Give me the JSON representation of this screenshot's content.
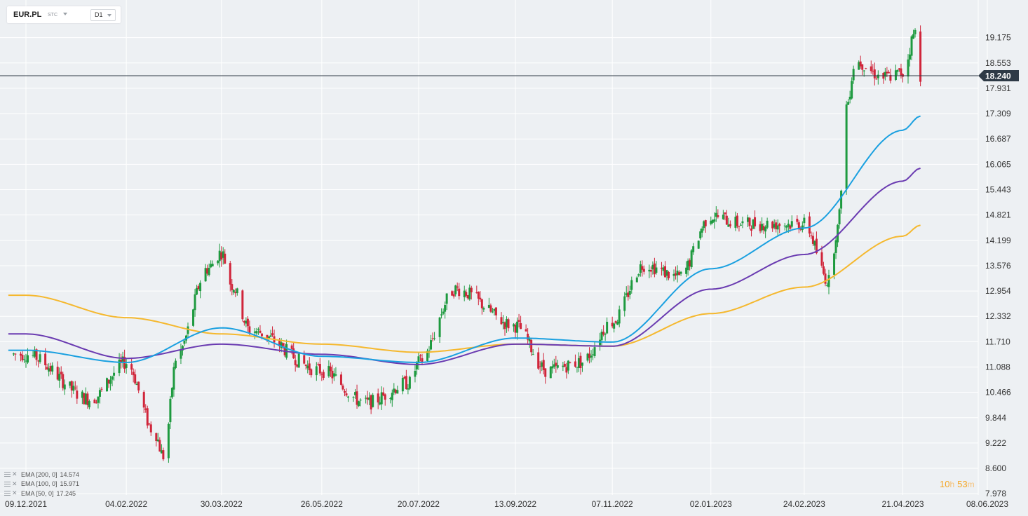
{
  "header": {
    "symbol": "EUR.PL",
    "symbol_sub": "STC",
    "timeframe": "D1"
  },
  "price_marker": "18.240",
  "timer": {
    "hours": "10",
    "hours_unit": "h",
    "minutes": "53",
    "minutes_unit": "m"
  },
  "legend": [
    {
      "name": "EMA [200, 0]",
      "value": "14.574"
    },
    {
      "name": "EMA [100, 0]",
      "value": "15.971"
    },
    {
      "name": "EMA [50, 0]",
      "value": "17.245"
    }
  ],
  "colors": {
    "background": "#edf0f3",
    "grid": "#ffffff",
    "bull": "#1e9a3f",
    "bear": "#d0253a",
    "ema200": "#f5b82e",
    "ema100": "#6a3bb1",
    "ema50": "#1aa0e0",
    "price_line": "#2e3a46",
    "price_tag": "#2e3a46"
  },
  "chart_data": {
    "type": "candlestick",
    "title": "",
    "xlabel": "",
    "ylabel": "",
    "ylim": [
      7.978,
      19.797
    ],
    "grid": true,
    "y_ticks": [
      "19.175",
      "18.553",
      "17.931",
      "17.309",
      "16.687",
      "16.065",
      "15.443",
      "14.821",
      "14.199",
      "13.576",
      "12.954",
      "12.332",
      "11.710",
      "11.088",
      "10.466",
      "9.844",
      "9.222",
      "8.600",
      "7.978"
    ],
    "x_ticks": [
      "09.12.2021",
      "04.02.2022",
      "30.03.2022",
      "26.05.2022",
      "20.07.2022",
      "13.09.2022",
      "07.11.2022",
      "02.01.2023",
      "24.02.2023",
      "21.04.2023",
      "08.06.2023"
    ],
    "last_price": 18.24,
    "ohlc_anchors": [
      {
        "x": "09.12.2021",
        "close": 11.4
      },
      {
        "x": "04.02.2022",
        "close": 11.2
      },
      {
        "x": "30.03.2022",
        "close": 13.9
      },
      {
        "x": "26.05.2022",
        "close": 11.0
      },
      {
        "x": "20.07.2022",
        "close": 11.2
      },
      {
        "x": "13.09.2022",
        "close": 12.1
      },
      {
        "x": "07.11.2022",
        "close": 12.2
      },
      {
        "x": "02.01.2023",
        "close": 14.8
      },
      {
        "x": "24.02.2023",
        "close": 14.6
      },
      {
        "x": "21.04.2023",
        "close": 18.3
      }
    ],
    "low_point": {
      "x": "04.02.2022",
      "value": 8.3
    },
    "high_point": {
      "x": "21.04.2023",
      "value": 19.7
    },
    "series": [
      {
        "name": "EMA [200, 0]",
        "points": [
          {
            "x": "09.12.2021",
            "y": 12.85
          },
          {
            "x": "04.02.2022",
            "y": 12.3
          },
          {
            "x": "30.03.2022",
            "y": 11.9
          },
          {
            "x": "26.05.2022",
            "y": 11.65
          },
          {
            "x": "20.07.2022",
            "y": 11.45
          },
          {
            "x": "13.09.2022",
            "y": 11.65
          },
          {
            "x": "07.11.2022",
            "y": 11.6
          },
          {
            "x": "02.01.2023",
            "y": 12.4
          },
          {
            "x": "24.02.2023",
            "y": 13.05
          },
          {
            "x": "21.04.2023",
            "y": 14.3
          },
          {
            "x": "01.05.2023",
            "y": 14.57
          }
        ]
      },
      {
        "name": "EMA [100, 0]",
        "points": [
          {
            "x": "09.12.2021",
            "y": 11.9
          },
          {
            "x": "04.02.2022",
            "y": 11.3
          },
          {
            "x": "30.03.2022",
            "y": 11.65
          },
          {
            "x": "26.05.2022",
            "y": 11.4
          },
          {
            "x": "20.07.2022",
            "y": 11.15
          },
          {
            "x": "13.09.2022",
            "y": 11.65
          },
          {
            "x": "07.11.2022",
            "y": 11.6
          },
          {
            "x": "02.01.2023",
            "y": 13.0
          },
          {
            "x": "24.02.2023",
            "y": 13.85
          },
          {
            "x": "21.04.2023",
            "y": 15.65
          },
          {
            "x": "01.05.2023",
            "y": 15.97
          }
        ]
      },
      {
        "name": "EMA [50, 0]",
        "points": [
          {
            "x": "09.12.2021",
            "y": 11.5
          },
          {
            "x": "04.02.2022",
            "y": 11.2
          },
          {
            "x": "30.03.2022",
            "y": 12.05
          },
          {
            "x": "26.05.2022",
            "y": 11.35
          },
          {
            "x": "20.07.2022",
            "y": 11.2
          },
          {
            "x": "13.09.2022",
            "y": 11.8
          },
          {
            "x": "07.11.2022",
            "y": 11.7
          },
          {
            "x": "02.01.2023",
            "y": 13.5
          },
          {
            "x": "24.02.2023",
            "y": 14.5
          },
          {
            "x": "21.04.2023",
            "y": 16.9
          },
          {
            "x": "01.05.2023",
            "y": 17.25
          }
        ]
      }
    ]
  }
}
